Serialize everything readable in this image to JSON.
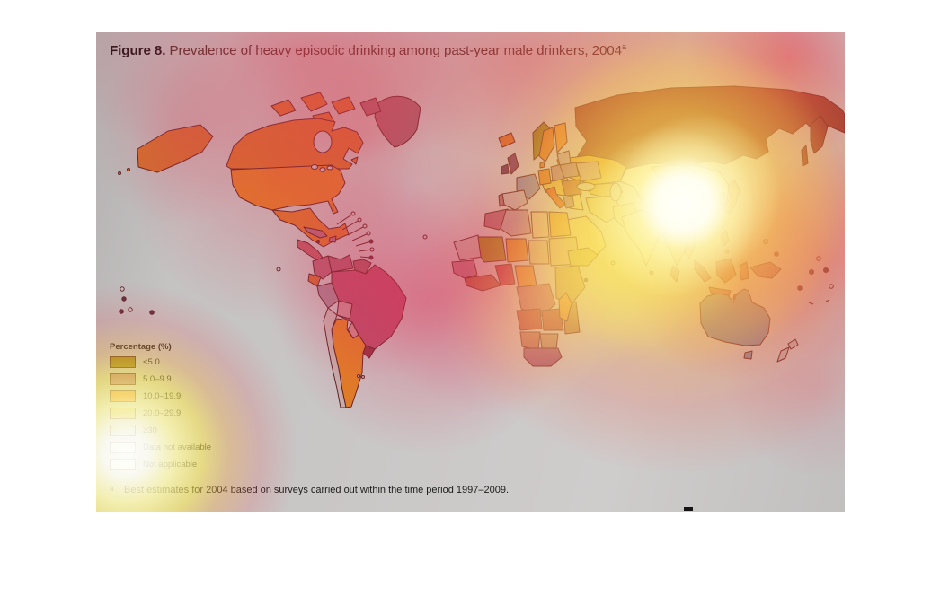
{
  "figure": {
    "label": "Figure 8.",
    "title": "Prevalence of heavy episodic drinking among past-year male drinkers, 2004",
    "title_superscript": "a",
    "footnote_marker": "a",
    "footnote": "Best estimates for 2004 based on surveys carried out within the time period 1997–2009."
  },
  "legend": {
    "title": "Percentage (%)",
    "items": [
      {
        "label": "<5.0",
        "color": "#94781c"
      },
      {
        "label": "5.0–9.9",
        "color": "#ad6f85"
      },
      {
        "label": "10.0–19.9",
        "color": "#e08622"
      },
      {
        "label": "20.0–29.9",
        "color": "#cbb84a"
      },
      {
        "label": "≥30",
        "color": "#b8bc8e"
      },
      {
        "label": "Data not available",
        "color": "#e3e1dc"
      },
      {
        "label": "Not applicable",
        "color": "#f4f3ef"
      }
    ]
  },
  "heat_overlay": {
    "core_color": "#fffdf5",
    "glow_color": "#ffe96a",
    "ring_color": "#f9a441",
    "halo_color": "#e23c5f"
  },
  "map": {
    "palette": {
      "stroke": "#5a2222",
      "sea": "#c8c5c5",
      "canada": "#d4712a",
      "greenland": "#a2616e",
      "alaska": "#cf6e2c",
      "usa": "#e07e28",
      "mexico": "#d9762a",
      "central_america": "#bb5a66",
      "cuba": "#b06a7a",
      "colombia": "#b06274",
      "venezuela": "#aa5c70",
      "guyanas": "#a05a64",
      "ecuador": "#cc6a32",
      "peru": "#a28795",
      "brazil": "#b5506a",
      "bolivia": "#c88f96",
      "paraguay": "#cc8c8c",
      "uruguay": "#8e3040",
      "argentina": "#e08224",
      "chile": "#c3b5b0",
      "iceland": "#d0702a",
      "uk": "#7a4462",
      "ireland": "#6a3a58",
      "norway": "#8a7a20",
      "sweden": "#d07a2a",
      "finland": "#dc8c34",
      "france": "#8d8ba8",
      "germany": "#d0752c",
      "east_europe": "#a87c8c",
      "baltics": "#b0a0a8",
      "ukraine": "#c098a0",
      "balkans": "#b05a40",
      "italy": "#d2552a",
      "spain": "#bbb2b4",
      "portugal": "#a86a78",
      "russia": "#8a382e",
      "kazakhstan": "#d8a83a",
      "central_asia": "#cfa048",
      "china": "#e9e2c2",
      "mongolia": "#ddb25a",
      "japan": "#d8862a",
      "korea": "#cc7a2e",
      "india": "#d8d0a8",
      "turkey": "#d8b050",
      "levant": "#d8c890",
      "iran": "#d0c080",
      "saudi": "#e0d08c",
      "morocco": "#a86678",
      "algeria": "#b49aa4",
      "libya": "#d4c49c",
      "egypt": "#dca83c",
      "mauritania": "#bdb4ae",
      "mali": "#988a1c",
      "niger": "#d4882c",
      "chad": "#ccba8c",
      "sudan": "#d0b484",
      "ethiopia": "#c0b048",
      "guinea_area": "#b07888",
      "west_africa": "#a85a40",
      "nigeria": "#b03048",
      "cameroon": "#d8822c",
      "drc": "#b2626e",
      "east_africa": "#b89a50",
      "angola": "#a83a36",
      "zambia": "#a84a3c",
      "mozambique": "#b07a4a",
      "namibia": "#b06a58",
      "botswana": "#b08a6a",
      "south_africa": "#a05878",
      "madagascar": "#dc8e2c",
      "myanmar": "#d8a048",
      "vietnam": "#d08038",
      "malaysia": "#b86050",
      "indonesia": "#b25a62",
      "borneo": "#b05a5a",
      "philippines": "#d07c36",
      "new_guinea": "#a6606e",
      "australia": "#7e8ba6",
      "new_zealand": "#b8b0b2",
      "dot_filled": "#5c3048",
      "dot_open": "#c9c6c6"
    }
  }
}
